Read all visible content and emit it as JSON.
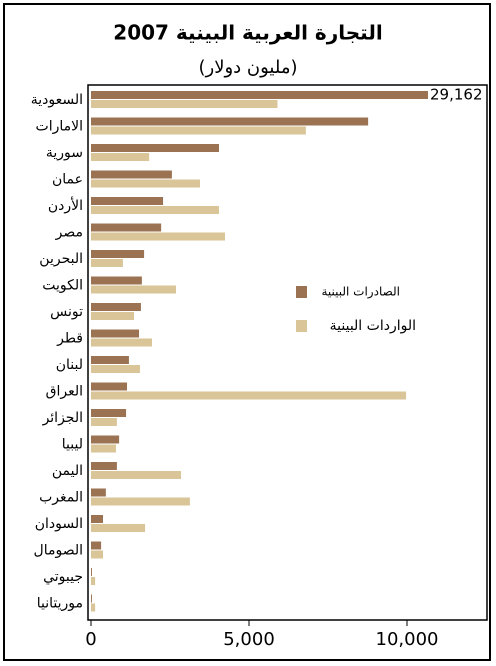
{
  "chart_data": {
    "type": "barh",
    "title": "التجارة العربية البينية 2007",
    "subtitle": "(مليون دولار)",
    "categories": [
      "السعودية",
      "الامارات",
      "سورية",
      "عمان",
      "الأردن",
      "مصر",
      "البحرين",
      "الكويت",
      "تونس",
      "قطر",
      "لبنان",
      "العراق",
      "الجزائر",
      "ليبيا",
      "اليمن",
      "المغرب",
      "السودان",
      "الصومال",
      "جيبوتي",
      "موريتانيا"
    ],
    "series": [
      {
        "name": "الصادرات البينية",
        "color": "#9b7353",
        "values": [
          29162,
          8770,
          4050,
          2560,
          2280,
          2220,
          1680,
          1610,
          1580,
          1520,
          1200,
          1140,
          1110,
          890,
          820,
          470,
          380,
          320,
          30,
          30
        ],
        "value_labels": [
          "29,162",
          null,
          null,
          null,
          null,
          null,
          null,
          null,
          null,
          null,
          null,
          null,
          null,
          null,
          null,
          null,
          null,
          null,
          null,
          null
        ]
      },
      {
        "name": "الواردات البينية",
        "color": "#d9c597",
        "values": [
          5900,
          6800,
          1840,
          3450,
          4050,
          4240,
          1010,
          2690,
          1360,
          1930,
          1550,
          9970,
          820,
          790,
          2850,
          3130,
          1710,
          380,
          130,
          130
        ]
      }
    ],
    "xlim": [
      0,
      12500
    ],
    "xticks": [
      0,
      {
        "value": 5000,
        "label": "5,000"
      },
      {
        "value": 10000,
        "label": "10,000"
      }
    ],
    "grid": false
  }
}
